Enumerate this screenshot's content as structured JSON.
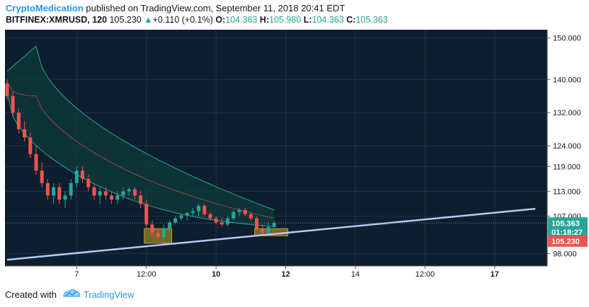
{
  "header": {
    "author": "CryptoMedication",
    "published": "published on TradingView.com, September 11, 2018 20:41 EDT",
    "symbol": "BITFINEX:XMRUSD, 120",
    "last": "105.230",
    "arrow": "▲",
    "change": "+0.110 (+0.1%)",
    "o_label": "O:",
    "o_value": "104.363",
    "h_label": "H:",
    "h_value": "105.980",
    "l_label": "L:",
    "l_value": "104.363",
    "c_label": "C:",
    "c_value": "105.363"
  },
  "footer": {
    "created": "Created with",
    "brand": "TradingView"
  },
  "colors": {
    "up": "#26a69a",
    "down": "#ef5350",
    "bb": "#26a69a",
    "bb_fill": "#0f3c3a",
    "ma": "#ef5350",
    "trend": "#b7c8f3",
    "box": "#c9a227",
    "accent": "#2196f3"
  },
  "chart_data": {
    "type": "candlestick",
    "ylim": [
      95,
      152
    ],
    "y_ticks": [
      {
        "value": 150,
        "label": "150.000"
      },
      {
        "value": 140,
        "label": "140.000"
      },
      {
        "value": 132,
        "label": "132.000"
      },
      {
        "value": 124,
        "label": "124.000"
      },
      {
        "value": 119,
        "label": "119.000"
      },
      {
        "value": 113,
        "label": "113.000"
      },
      {
        "value": 107,
        "label": "107.000"
      },
      {
        "value": 98,
        "label": "98.000"
      }
    ],
    "x_ticks": [
      {
        "bar": 12,
        "label": "7",
        "bold": false
      },
      {
        "bar": 24,
        "label": "12:00",
        "bold": false
      },
      {
        "bar": 36,
        "label": "10",
        "bold": true
      },
      {
        "bar": 48,
        "label": "12",
        "bold": true
      },
      {
        "bar": 60,
        "label": "14",
        "bold": false
      },
      {
        "bar": 72,
        "label": "12:00",
        "bold": false
      },
      {
        "bar": 84,
        "label": "17",
        "bold": true
      }
    ],
    "candles": [
      {
        "o": 139,
        "h": 140,
        "l": 135,
        "c": 136
      },
      {
        "o": 136,
        "h": 137,
        "l": 131,
        "c": 132
      },
      {
        "o": 132,
        "h": 133,
        "l": 127,
        "c": 128
      },
      {
        "o": 128,
        "h": 130,
        "l": 125,
        "c": 126
      },
      {
        "o": 126,
        "h": 127,
        "l": 121,
        "c": 122
      },
      {
        "o": 122,
        "h": 124,
        "l": 117,
        "c": 118
      },
      {
        "o": 118,
        "h": 120,
        "l": 114,
        "c": 115
      },
      {
        "o": 115,
        "h": 116,
        "l": 111,
        "c": 112
      },
      {
        "o": 112,
        "h": 115,
        "l": 110,
        "c": 114
      },
      {
        "o": 114,
        "h": 115,
        "l": 110,
        "c": 111
      },
      {
        "o": 111,
        "h": 113,
        "l": 109,
        "c": 112
      },
      {
        "o": 112,
        "h": 116,
        "l": 111,
        "c": 115
      },
      {
        "o": 115,
        "h": 119,
        "l": 114,
        "c": 118
      },
      {
        "o": 118,
        "h": 119,
        "l": 115,
        "c": 116
      },
      {
        "o": 116,
        "h": 117,
        "l": 113,
        "c": 114
      },
      {
        "o": 114,
        "h": 115,
        "l": 111,
        "c": 112
      },
      {
        "o": 112,
        "h": 114,
        "l": 110,
        "c": 113
      },
      {
        "o": 113,
        "h": 114,
        "l": 111,
        "c": 112
      },
      {
        "o": 112,
        "h": 113,
        "l": 110,
        "c": 111
      },
      {
        "o": 111,
        "h": 113,
        "l": 110,
        "c": 112
      },
      {
        "o": 112,
        "h": 114,
        "l": 111,
        "c": 113
      },
      {
        "o": 113,
        "h": 114,
        "l": 112,
        "c": 113.5
      },
      {
        "o": 113.5,
        "h": 114,
        "l": 111,
        "c": 112
      },
      {
        "o": 112,
        "h": 113,
        "l": 109,
        "c": 110
      },
      {
        "o": 110,
        "h": 111,
        "l": 104,
        "c": 105
      },
      {
        "o": 105,
        "h": 106,
        "l": 102,
        "c": 103
      },
      {
        "o": 103,
        "h": 104,
        "l": 101,
        "c": 102
      },
      {
        "o": 102,
        "h": 105,
        "l": 101,
        "c": 104
      },
      {
        "o": 104,
        "h": 106,
        "l": 103,
        "c": 105.5
      },
      {
        "o": 105.5,
        "h": 107,
        "l": 105,
        "c": 106.5
      },
      {
        "o": 106.5,
        "h": 107.5,
        "l": 106,
        "c": 107.2
      },
      {
        "o": 107.2,
        "h": 108,
        "l": 106,
        "c": 107.8
      },
      {
        "o": 107.8,
        "h": 109,
        "l": 107,
        "c": 108.2
      },
      {
        "o": 108.2,
        "h": 110,
        "l": 107,
        "c": 109.5
      },
      {
        "o": 109.5,
        "h": 110,
        "l": 107,
        "c": 107.5
      },
      {
        "o": 107.5,
        "h": 108,
        "l": 106,
        "c": 106.5
      },
      {
        "o": 106.5,
        "h": 107,
        "l": 105,
        "c": 105.5
      },
      {
        "o": 105.5,
        "h": 106.5,
        "l": 104.5,
        "c": 105
      },
      {
        "o": 105,
        "h": 107,
        "l": 104.5,
        "c": 106.5
      },
      {
        "o": 106.5,
        "h": 108.5,
        "l": 106,
        "c": 108
      },
      {
        "o": 108,
        "h": 109,
        "l": 107,
        "c": 108.5
      },
      {
        "o": 108.5,
        "h": 109,
        "l": 107,
        "c": 107.5
      },
      {
        "o": 107.5,
        "h": 108,
        "l": 106,
        "c": 106.5
      },
      {
        "o": 106.5,
        "h": 107,
        "l": 103.5,
        "c": 104
      },
      {
        "o": 104,
        "h": 105,
        "l": 102.5,
        "c": 103
      },
      {
        "o": 103,
        "h": 105.5,
        "l": 102.5,
        "c": 104.363
      },
      {
        "o": 104.363,
        "h": 105.98,
        "l": 104.363,
        "c": 105.363
      }
    ],
    "bollinger": {
      "upper_start": 142,
      "upper_peak": 148,
      "upper_end": 108.5,
      "lower_start": 137,
      "lower_end": 104.5
    },
    "trend_line": {
      "from": {
        "bar": 0,
        "value": 96.5
      },
      "to": {
        "bar": 91,
        "value": 108.8
      }
    },
    "price_labels": [
      {
        "value": 105.363,
        "label": "105.363",
        "color": "#26a69a"
      },
      {
        "value": 103.2,
        "label": "01:18:27",
        "color": "#26a69a"
      },
      {
        "value": 101.0,
        "label": "105.230",
        "color": "#ef5350"
      }
    ]
  }
}
